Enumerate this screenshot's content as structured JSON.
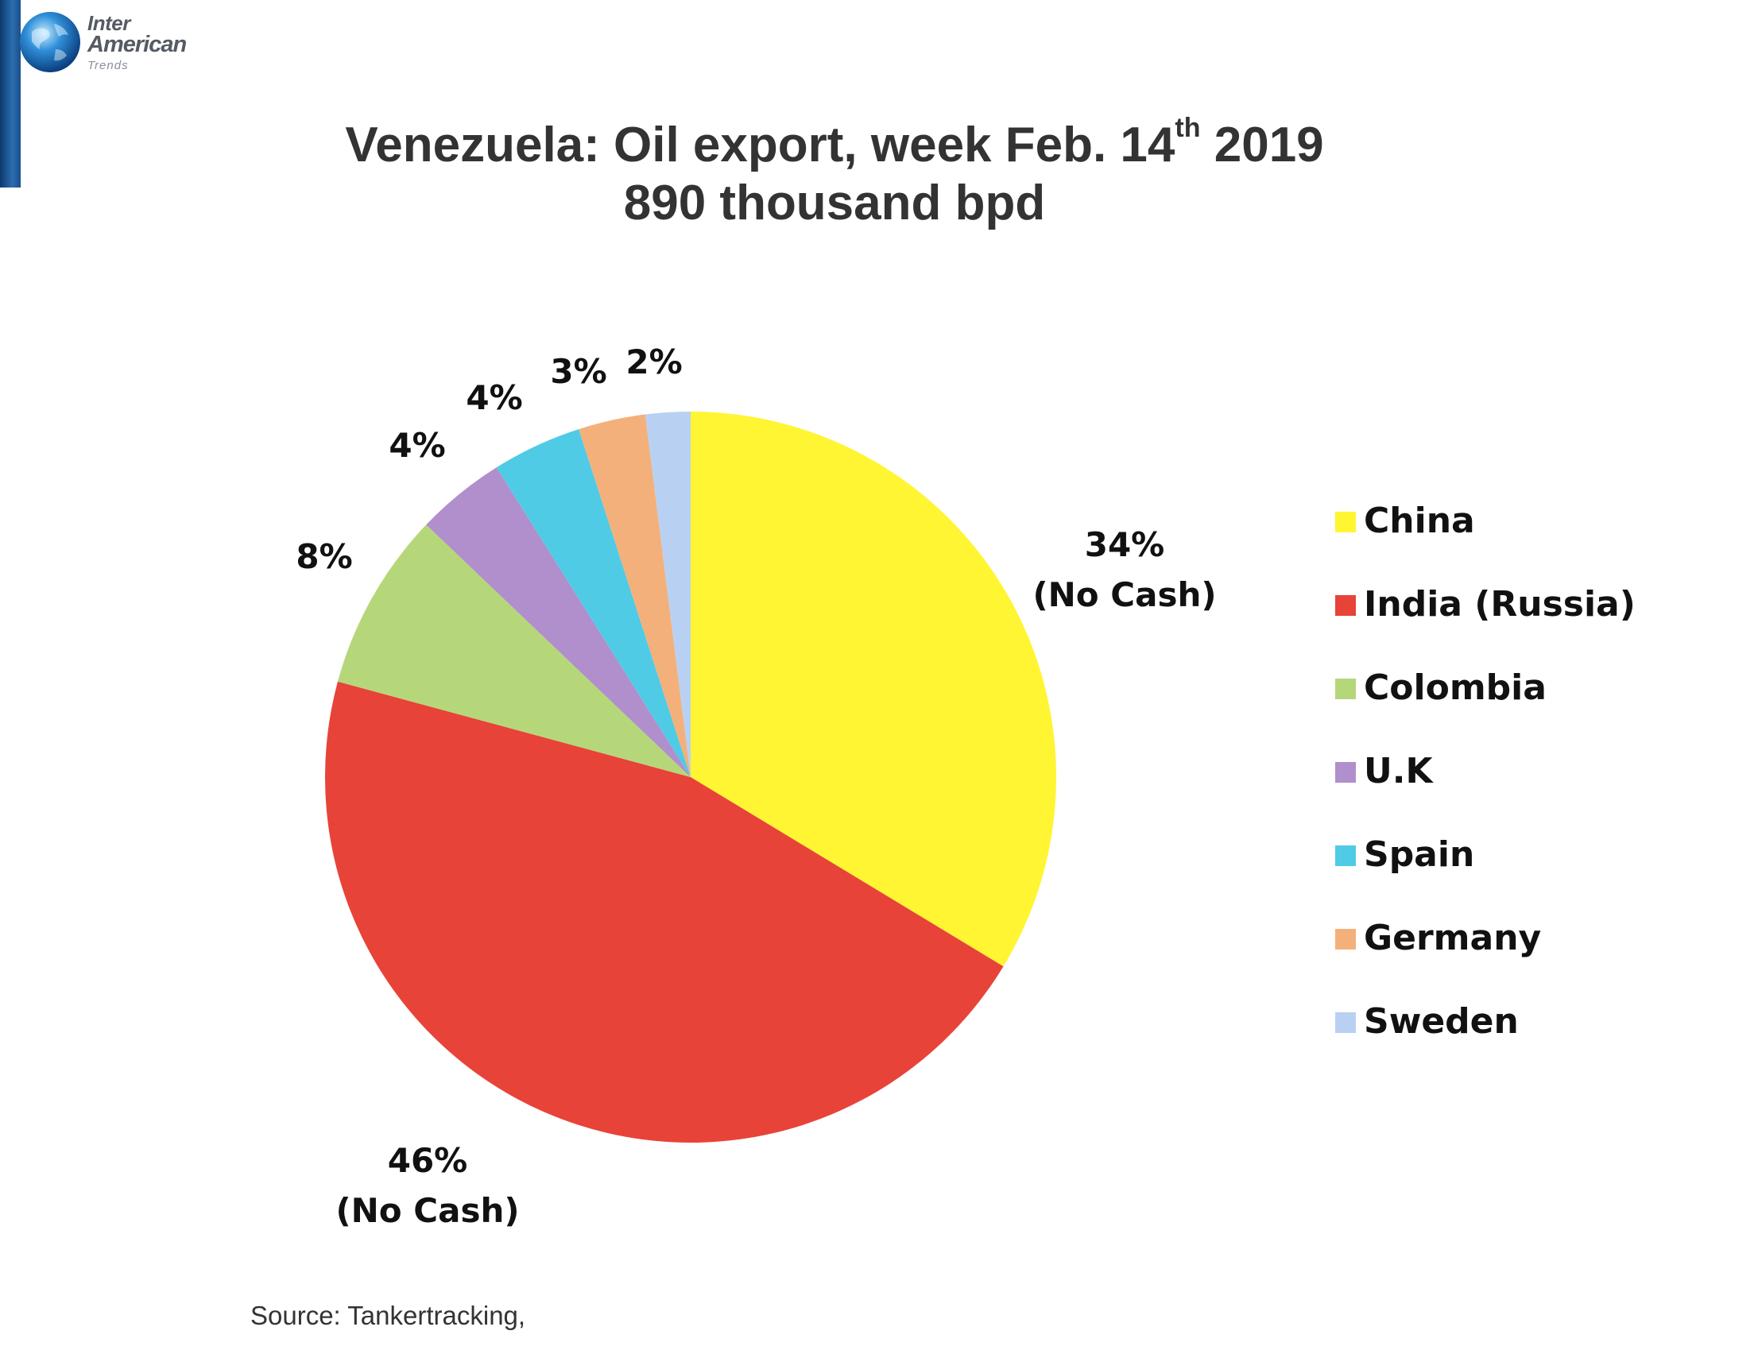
{
  "logo": {
    "line1": "Inter",
    "line2": "American",
    "line3": "Trends",
    "icon": "globe-icon"
  },
  "title": {
    "line1_pre": "Venezuela: Oil export, week Feb. 14",
    "line1_sup": "th",
    "line1_post": " 2019",
    "line2": "890 thousand bpd"
  },
  "source": "Source: Tankertracking,",
  "chart_data": {
    "type": "pie",
    "title": "Venezuela: Oil export, week Feb. 14th 2019",
    "subtitle": "890 thousand bpd",
    "start": "12 o'clock, clockwise",
    "legend_position": "right",
    "slices": [
      {
        "label": "China",
        "value": 34,
        "color": "#fff532",
        "display": "34%",
        "note": "(No Cash)"
      },
      {
        "label": "India (Russia)",
        "value": 46,
        "color": "#e84338",
        "display": "46%",
        "note": "(No Cash)"
      },
      {
        "label": "Colombia",
        "value": 8,
        "color": "#b5d77a",
        "display": "8%",
        "note": ""
      },
      {
        "label": "U.K",
        "value": 4,
        "color": "#b08fcc",
        "display": "4%",
        "note": ""
      },
      {
        "label": "Spain",
        "value": 4,
        "color": "#4fcbe6",
        "display": "4%",
        "note": ""
      },
      {
        "label": "Germany",
        "value": 3,
        "color": "#f4b07a",
        "display": "3%",
        "note": ""
      },
      {
        "label": "Sweden",
        "value": 2,
        "color": "#b8d1f3",
        "display": "2%",
        "note": ""
      }
    ]
  }
}
